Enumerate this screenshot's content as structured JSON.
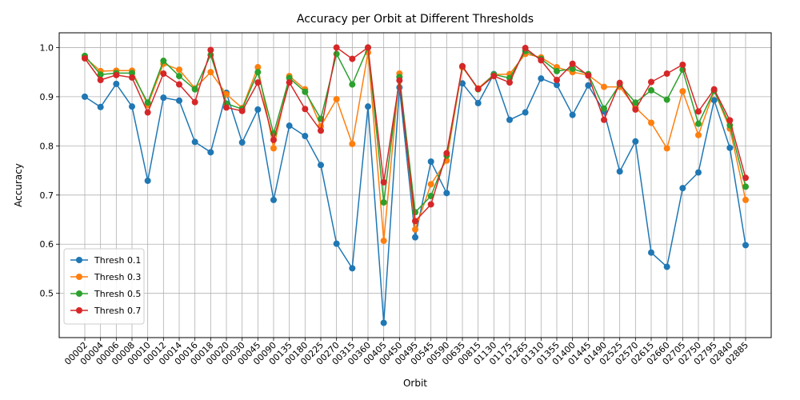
{
  "chart_data": {
    "type": "line",
    "title": "Accuracy per Orbit at Different Thresholds",
    "xlabel": "Orbit",
    "ylabel": "Accuracy",
    "ylim": [
      0.41,
      1.03
    ],
    "yticks": [
      "0.5",
      "0.6",
      "0.7",
      "0.8",
      "0.9",
      "1.0"
    ],
    "ytick_values": [
      0.5,
      0.6,
      0.7,
      0.8,
      0.9,
      1.0
    ],
    "grid": true,
    "legend_position": "lower-left",
    "categories": [
      "00002",
      "00004",
      "00006",
      "00008",
      "00010",
      "00012",
      "00014",
      "00016",
      "00018",
      "00020",
      "00030",
      "00045",
      "00090",
      "00135",
      "00180",
      "00225",
      "00270",
      "00315",
      "00360",
      "00405",
      "00450",
      "00495",
      "00545",
      "00590",
      "00635",
      "00815",
      "01130",
      "01175",
      "01265",
      "01310",
      "01355",
      "01400",
      "01445",
      "01490",
      "02525",
      "02570",
      "02615",
      "02660",
      "02705",
      "02750",
      "02795",
      "02840",
      "02885"
    ],
    "series": [
      {
        "name": "Thresh 0.1",
        "color": "#1f77b4",
        "values": [
          0.9,
          0.879,
          0.926,
          0.88,
          0.729,
          0.898,
          0.892,
          0.808,
          0.787,
          0.908,
          0.807,
          0.874,
          0.69,
          0.841,
          0.82,
          0.761,
          0.601,
          0.551,
          0.88,
          0.44,
          0.919,
          0.614,
          0.768,
          0.704,
          0.927,
          0.887,
          0.946,
          0.853,
          0.868,
          0.937,
          0.924,
          0.863,
          0.923,
          0.87,
          0.748,
          0.809,
          0.583,
          0.554,
          0.714,
          0.746,
          0.893,
          0.796,
          0.598
        ]
      },
      {
        "name": "Thresh 0.3",
        "color": "#ff7f0e",
        "values": [
          0.98,
          0.952,
          0.953,
          0.953,
          0.883,
          0.967,
          0.955,
          0.917,
          0.95,
          0.905,
          0.877,
          0.96,
          0.795,
          0.942,
          0.915,
          0.84,
          0.895,
          0.804,
          0.99,
          0.607,
          0.947,
          0.63,
          0.722,
          0.77,
          0.96,
          0.917,
          0.945,
          0.946,
          0.987,
          0.98,
          0.96,
          0.95,
          0.944,
          0.92,
          0.92,
          0.878,
          0.847,
          0.795,
          0.911,
          0.822,
          0.912,
          0.835,
          0.69
        ]
      },
      {
        "name": "Thresh 0.5",
        "color": "#2ca02c",
        "values": [
          0.983,
          0.945,
          0.948,
          0.948,
          0.888,
          0.973,
          0.942,
          0.915,
          0.985,
          0.886,
          0.875,
          0.95,
          0.825,
          0.938,
          0.91,
          0.855,
          0.987,
          0.925,
          1.0,
          0.685,
          0.94,
          0.665,
          0.698,
          0.78,
          0.962,
          0.915,
          0.945,
          0.938,
          0.993,
          0.977,
          0.952,
          0.957,
          0.946,
          0.876,
          0.925,
          0.888,
          0.913,
          0.894,
          0.955,
          0.845,
          0.912,
          0.842,
          0.717
        ]
      },
      {
        "name": "Thresh 0.7",
        "color": "#d62728",
        "values": [
          0.978,
          0.934,
          0.944,
          0.939,
          0.868,
          0.947,
          0.925,
          0.889,
          0.995,
          0.878,
          0.871,
          0.929,
          0.812,
          0.929,
          0.875,
          0.831,
          1.0,
          0.977,
          1.0,
          0.726,
          0.933,
          0.647,
          0.681,
          0.785,
          0.962,
          0.916,
          0.942,
          0.929,
          0.999,
          0.974,
          0.934,
          0.967,
          0.943,
          0.853,
          0.928,
          0.874,
          0.93,
          0.947,
          0.965,
          0.87,
          0.915,
          0.852,
          0.735
        ]
      }
    ]
  }
}
